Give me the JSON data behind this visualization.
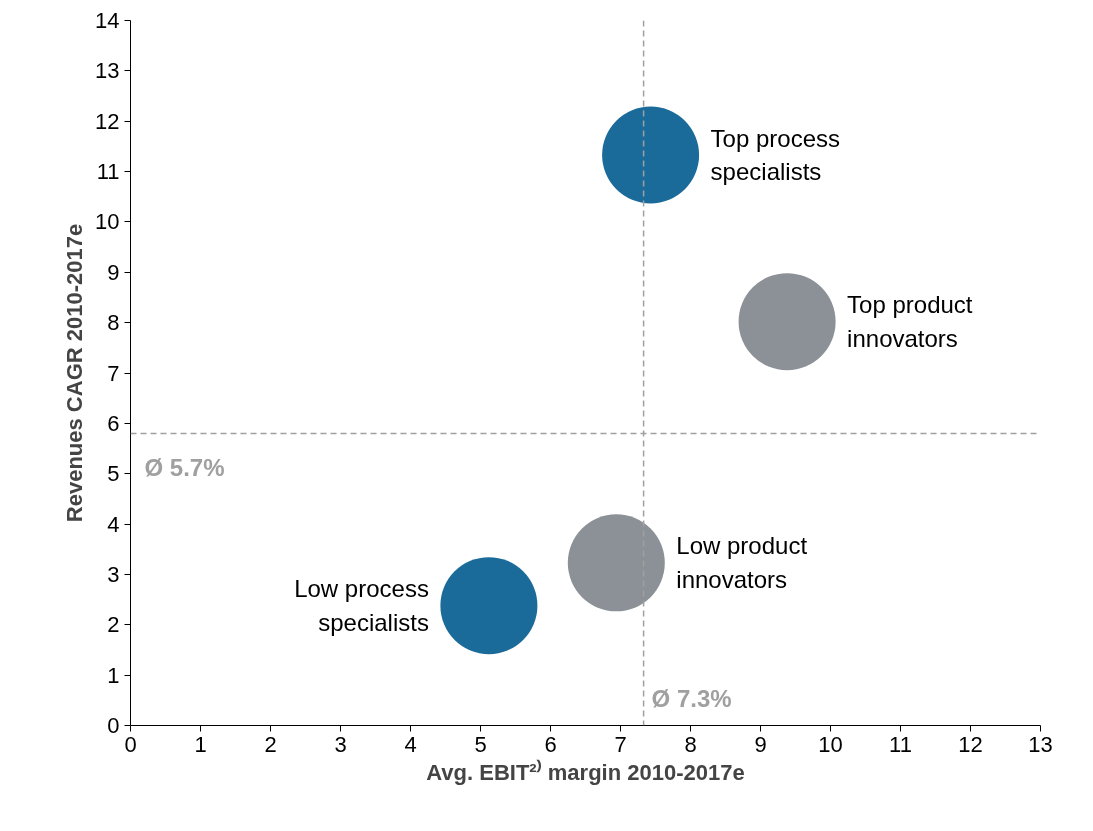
{
  "chart_data": {
    "type": "bubble",
    "xlabel": "Avg. EBIT²⁾ margin 2010-2017e",
    "ylabel": "Revenues CAGR 2010-2017e",
    "x": [
      7.43,
      9.38,
      6.94,
      5.12
    ],
    "values": [
      11.33,
      8.02,
      3.23,
      2.38
    ],
    "sizes": [
      1,
      1,
      1,
      1
    ],
    "colors": [
      "#1a6b9a",
      "#8c9197",
      "#8c9197",
      "#1a6b9a"
    ],
    "xlim": [
      0,
      13
    ],
    "xticks": [
      0,
      1,
      2,
      3,
      4,
      5,
      6,
      7,
      8,
      9,
      10,
      11,
      12,
      13
    ],
    "ylim": [
      0,
      14
    ],
    "yticks": [
      0,
      1,
      2,
      3,
      4,
      5,
      6,
      7,
      8,
      9,
      10,
      11,
      12,
      13,
      14
    ],
    "ref_lines": [
      {
        "axis": "x",
        "value": 7.33,
        "label": "Ø 7.3%",
        "color": "#a0a0a0",
        "line_style": "dashed"
      },
      {
        "axis": "y",
        "value": 5.8,
        "label": "Ø 5.7%",
        "color": "#a0a0a0",
        "line_style": "dashed"
      }
    ],
    "annotations": [
      {
        "text": "Top process\nspecialists",
        "x": 7.43,
        "y": 11.33
      },
      {
        "text": "Top product\ninnovators",
        "x": 9.38,
        "y": 8.02
      },
      {
        "text": "Low product\ninnovators",
        "x": 6.94,
        "y": 3.23
      },
      {
        "text": "Low process\nspecialists",
        "x": 5.12,
        "y": 2.38
      }
    ],
    "grid": false
  }
}
